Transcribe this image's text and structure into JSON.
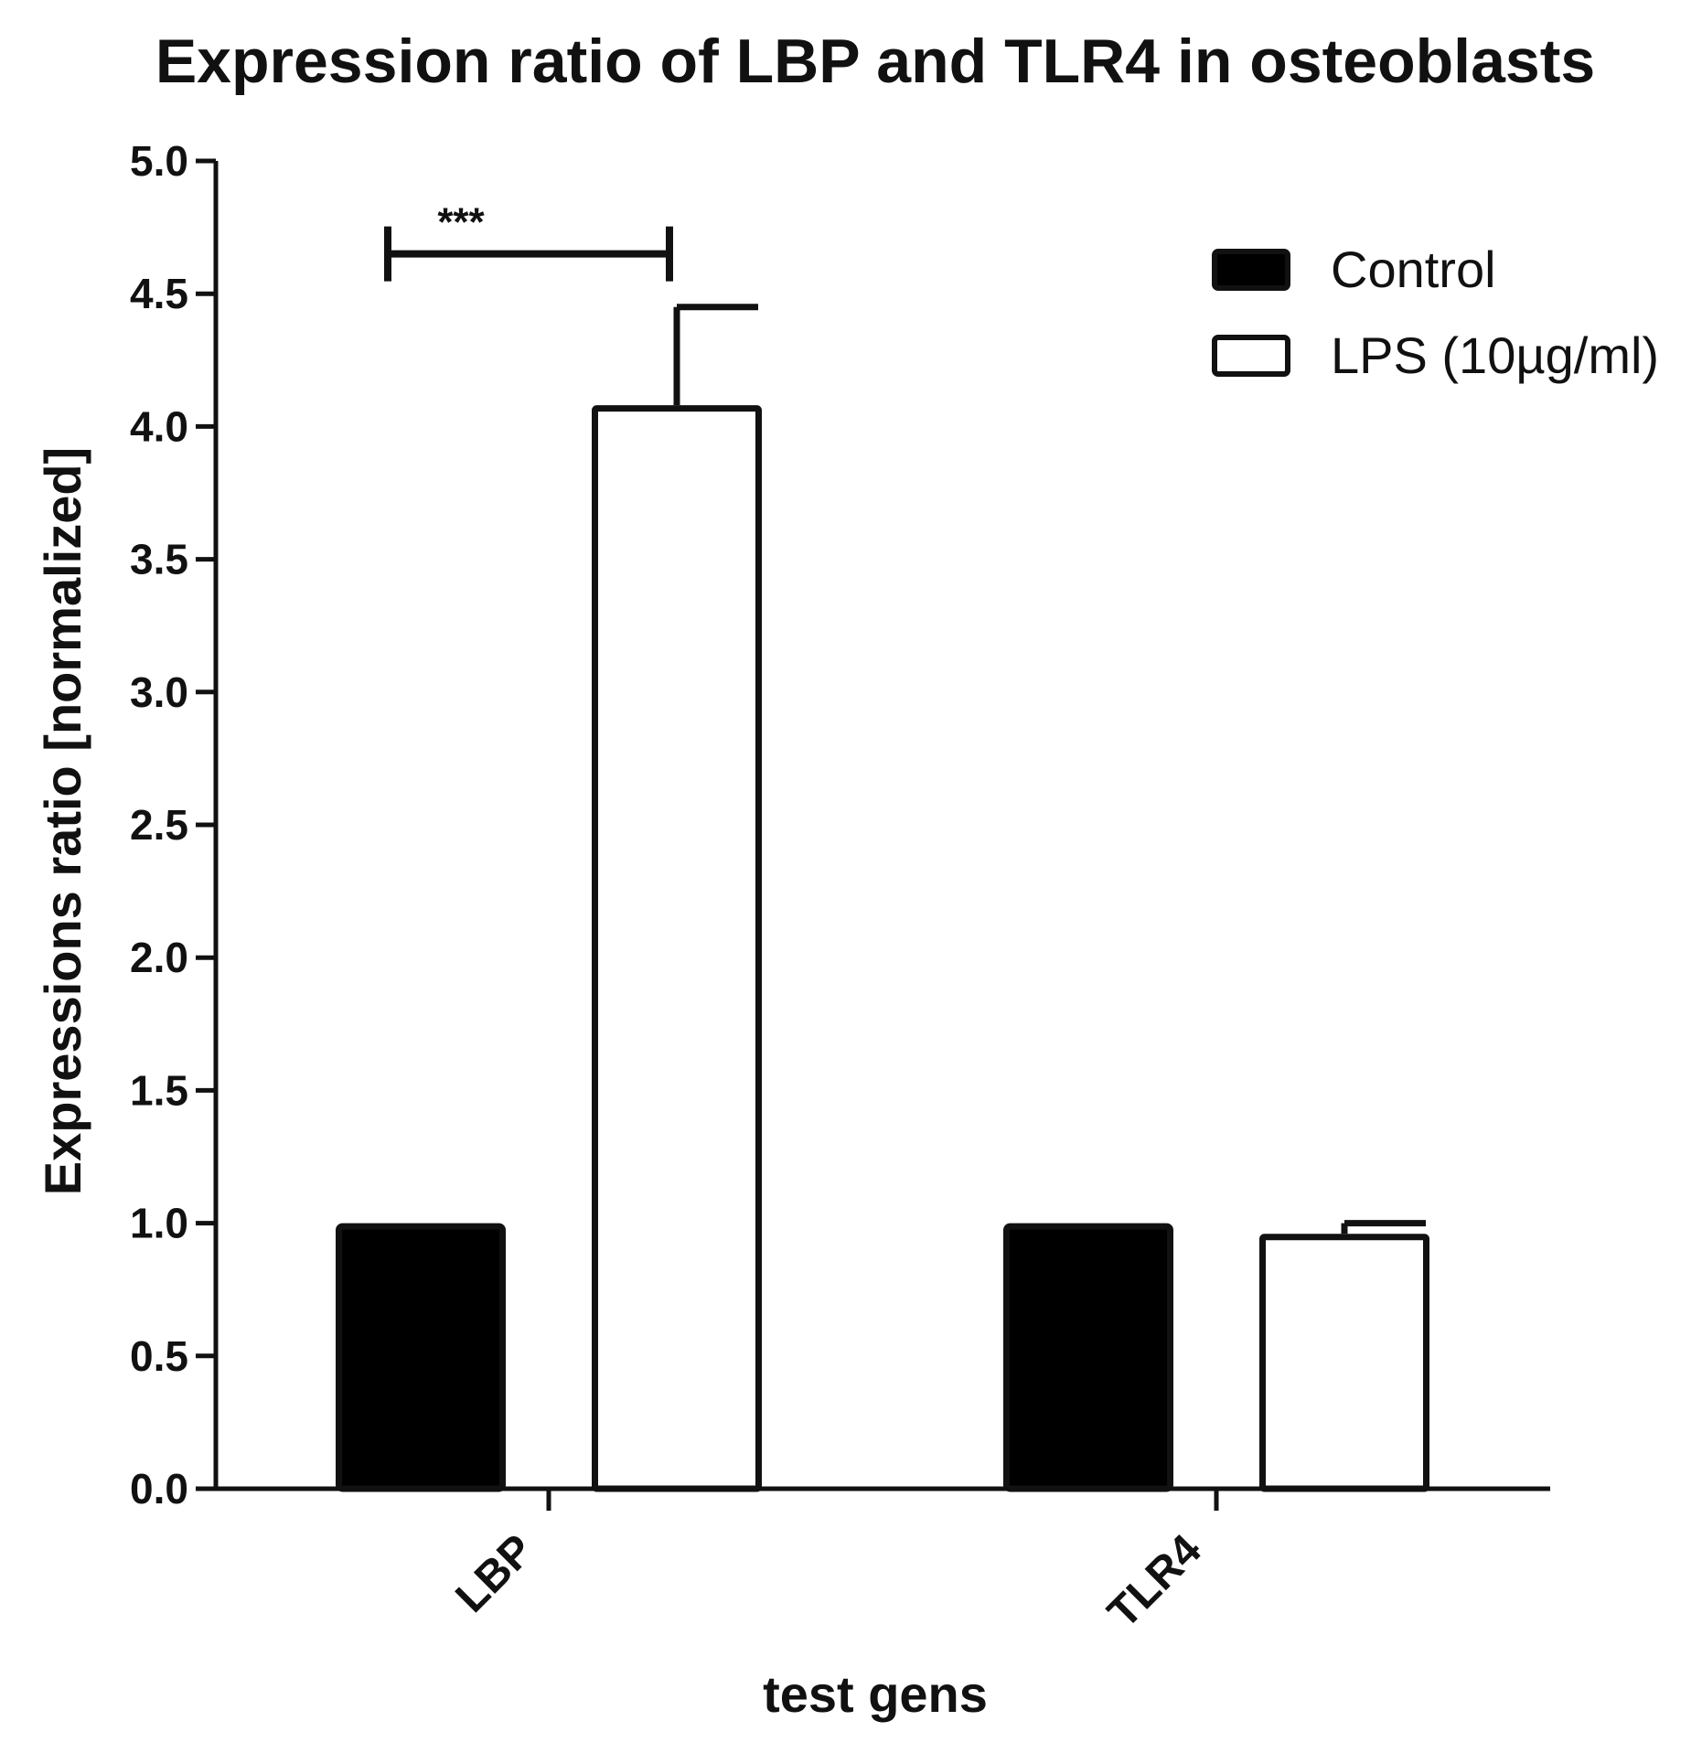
{
  "chart_data": {
    "type": "bar",
    "title": "Expression ratio of LBP and TLR4 in osteoblasts",
    "xlabel": "test gens",
    "ylabel": "Expressions ratio [normalized]",
    "ylim": [
      0,
      5
    ],
    "yticks": [
      "0.0",
      "0.5",
      "1.0",
      "1.5",
      "2.0",
      "2.5",
      "3.0",
      "3.5",
      "4.0",
      "4.5",
      "5.0"
    ],
    "categories": [
      "LBP",
      "TLR4"
    ],
    "series": [
      {
        "name": "Control",
        "fill": "#000000",
        "values": [
          1.0,
          1.0
        ],
        "error": [
          0,
          0
        ]
      },
      {
        "name": "LPS (10µg/ml)",
        "fill": "#ffffff",
        "values": [
          4.08,
          0.96
        ],
        "error": [
          0.37,
          0.04
        ]
      }
    ],
    "legend_position": "top-right",
    "significance": {
      "label": "***",
      "category": "LBP",
      "y": 4.65
    }
  },
  "colors": {
    "axis": "#111111",
    "background": "#ffffff"
  }
}
